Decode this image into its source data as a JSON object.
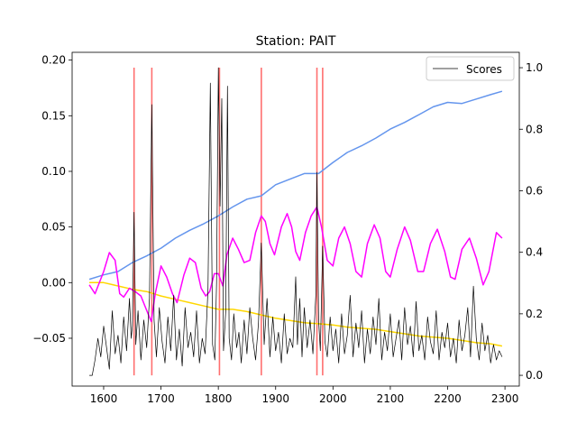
{
  "chart_data": {
    "type": "line",
    "title": "Station: PAIT",
    "xlabel": "",
    "ylabel": "",
    "xlim": [
      1545,
      2325
    ],
    "ylim_left": [
      -0.093,
      0.207
    ],
    "ylim_right": [
      -0.035,
      1.05
    ],
    "x_ticks": [
      1600,
      1700,
      1800,
      1900,
      2000,
      2100,
      2200,
      2300
    ],
    "y_ticks_left": [
      -0.05,
      0.0,
      0.05,
      0.1,
      0.15,
      0.2
    ],
    "y_ticks_right": [
      0.0,
      0.2,
      0.4,
      0.6,
      0.8,
      1.0
    ],
    "grid": false,
    "legend": {
      "placement": "top-right",
      "entries": [
        {
          "label": "Scores",
          "color": "#000000"
        }
      ]
    },
    "anomaly_lines": {
      "color": "#ff6f6f",
      "x": [
        1653,
        1684,
        1802,
        1875,
        1972,
        1982
      ],
      "y_range_right": [
        0.0,
        1.0
      ]
    },
    "series": [
      {
        "axis": "left",
        "color": "#6495ed",
        "points": [
          [
            1575,
            0.003
          ],
          [
            1600,
            0.007
          ],
          [
            1625,
            0.01
          ],
          [
            1650,
            0.018
          ],
          [
            1675,
            0.024
          ],
          [
            1700,
            0.031
          ],
          [
            1725,
            0.04
          ],
          [
            1750,
            0.047
          ],
          [
            1775,
            0.053
          ],
          [
            1800,
            0.06
          ],
          [
            1825,
            0.068
          ],
          [
            1850,
            0.075
          ],
          [
            1875,
            0.078
          ],
          [
            1900,
            0.088
          ],
          [
            1925,
            0.093
          ],
          [
            1950,
            0.098
          ],
          [
            1975,
            0.098
          ],
          [
            2000,
            0.108
          ],
          [
            2025,
            0.117
          ],
          [
            2050,
            0.123
          ],
          [
            2075,
            0.13
          ],
          [
            2100,
            0.138
          ],
          [
            2125,
            0.144
          ],
          [
            2150,
            0.151
          ],
          [
            2175,
            0.158
          ],
          [
            2200,
            0.162
          ],
          [
            2225,
            0.161
          ],
          [
            2250,
            0.165
          ],
          [
            2275,
            0.169
          ],
          [
            2295,
            0.172
          ]
        ]
      },
      {
        "axis": "left",
        "color": "#ffd700",
        "points": [
          [
            1575,
            0.0
          ],
          [
            1600,
            0.0
          ],
          [
            1625,
            -0.003
          ],
          [
            1650,
            -0.006
          ],
          [
            1675,
            -0.008
          ],
          [
            1700,
            -0.012
          ],
          [
            1725,
            -0.015
          ],
          [
            1750,
            -0.018
          ],
          [
            1775,
            -0.021
          ],
          [
            1800,
            -0.024
          ],
          [
            1825,
            -0.024
          ],
          [
            1850,
            -0.026
          ],
          [
            1875,
            -0.029
          ],
          [
            1900,
            -0.032
          ],
          [
            1925,
            -0.034
          ],
          [
            1950,
            -0.036
          ],
          [
            1975,
            -0.037
          ],
          [
            2000,
            -0.038
          ],
          [
            2025,
            -0.04
          ],
          [
            2050,
            -0.041
          ],
          [
            2075,
            -0.042
          ],
          [
            2100,
            -0.044
          ],
          [
            2125,
            -0.046
          ],
          [
            2150,
            -0.048
          ],
          [
            2175,
            -0.049
          ],
          [
            2200,
            -0.05
          ],
          [
            2225,
            -0.052
          ],
          [
            2250,
            -0.054
          ],
          [
            2275,
            -0.055
          ],
          [
            2295,
            -0.057
          ]
        ]
      },
      {
        "axis": "left",
        "color": "#ff00ff",
        "points": [
          [
            1575,
            -0.002
          ],
          [
            1585,
            -0.01
          ],
          [
            1600,
            0.01
          ],
          [
            1610,
            0.027
          ],
          [
            1620,
            0.02
          ],
          [
            1628,
            -0.01
          ],
          [
            1635,
            -0.013
          ],
          [
            1645,
            -0.005
          ],
          [
            1655,
            -0.008
          ],
          [
            1665,
            -0.012
          ],
          [
            1675,
            -0.025
          ],
          [
            1683,
            -0.035
          ],
          [
            1690,
            -0.01
          ],
          [
            1700,
            0.015
          ],
          [
            1710,
            0.005
          ],
          [
            1720,
            -0.01
          ],
          [
            1728,
            -0.018
          ],
          [
            1740,
            0.007
          ],
          [
            1750,
            0.022
          ],
          [
            1760,
            0.018
          ],
          [
            1770,
            -0.005
          ],
          [
            1778,
            -0.012
          ],
          [
            1785,
            -0.008
          ],
          [
            1793,
            0.008
          ],
          [
            1800,
            0.008
          ],
          [
            1808,
            -0.003
          ],
          [
            1815,
            0.025
          ],
          [
            1825,
            0.04
          ],
          [
            1835,
            0.03
          ],
          [
            1845,
            0.018
          ],
          [
            1855,
            0.02
          ],
          [
            1865,
            0.045
          ],
          [
            1875,
            0.06
          ],
          [
            1882,
            0.055
          ],
          [
            1890,
            0.035
          ],
          [
            1898,
            0.025
          ],
          [
            1910,
            0.05
          ],
          [
            1920,
            0.062
          ],
          [
            1928,
            0.05
          ],
          [
            1935,
            0.028
          ],
          [
            1942,
            0.02
          ],
          [
            1952,
            0.045
          ],
          [
            1962,
            0.06
          ],
          [
            1972,
            0.068
          ],
          [
            1980,
            0.05
          ],
          [
            1990,
            0.02
          ],
          [
            2000,
            0.015
          ],
          [
            2010,
            0.04
          ],
          [
            2020,
            0.05
          ],
          [
            2030,
            0.035
          ],
          [
            2040,
            0.01
          ],
          [
            2050,
            0.005
          ],
          [
            2060,
            0.035
          ],
          [
            2072,
            0.052
          ],
          [
            2082,
            0.04
          ],
          [
            2092,
            0.01
          ],
          [
            2100,
            0.005
          ],
          [
            2112,
            0.03
          ],
          [
            2125,
            0.05
          ],
          [
            2135,
            0.038
          ],
          [
            2148,
            0.01
          ],
          [
            2158,
            0.01
          ],
          [
            2170,
            0.035
          ],
          [
            2182,
            0.048
          ],
          [
            2195,
            0.028
          ],
          [
            2205,
            0.005
          ],
          [
            2213,
            0.003
          ],
          [
            2225,
            0.03
          ],
          [
            2238,
            0.04
          ],
          [
            2250,
            0.022
          ],
          [
            2262,
            -0.002
          ],
          [
            2272,
            0.01
          ],
          [
            2285,
            0.045
          ],
          [
            2295,
            0.04
          ]
        ]
      },
      {
        "name": "Scores",
        "axis": "right",
        "color": "#000000",
        "points": [
          [
            1575,
            0.0
          ],
          [
            1580,
            0.0
          ],
          [
            1585,
            0.05
          ],
          [
            1590,
            0.12
          ],
          [
            1595,
            0.06
          ],
          [
            1600,
            0.16
          ],
          [
            1605,
            0.09
          ],
          [
            1610,
            0.02
          ],
          [
            1615,
            0.21
          ],
          [
            1620,
            0.07
          ],
          [
            1625,
            0.13
          ],
          [
            1630,
            0.04
          ],
          [
            1635,
            0.19
          ],
          [
            1640,
            0.08
          ],
          [
            1645,
            0.25
          ],
          [
            1648,
            0.12
          ],
          [
            1650,
            0.16
          ],
          [
            1653,
            0.53
          ],
          [
            1656,
            0.1
          ],
          [
            1660,
            0.21
          ],
          [
            1665,
            0.05
          ],
          [
            1670,
            0.18
          ],
          [
            1675,
            0.09
          ],
          [
            1680,
            0.25
          ],
          [
            1684,
            0.88
          ],
          [
            1688,
            0.18
          ],
          [
            1692,
            0.06
          ],
          [
            1697,
            0.22
          ],
          [
            1702,
            0.11
          ],
          [
            1707,
            0.04
          ],
          [
            1712,
            0.19
          ],
          [
            1717,
            0.08
          ],
          [
            1722,
            0.26
          ],
          [
            1727,
            0.05
          ],
          [
            1732,
            0.15
          ],
          [
            1737,
            0.03
          ],
          [
            1742,
            0.22
          ],
          [
            1747,
            0.09
          ],
          [
            1752,
            0.14
          ],
          [
            1757,
            0.06
          ],
          [
            1762,
            0.21
          ],
          [
            1767,
            0.04
          ],
          [
            1772,
            0.12
          ],
          [
            1777,
            0.07
          ],
          [
            1782,
            0.28
          ],
          [
            1786,
            0.95
          ],
          [
            1790,
            0.1
          ],
          [
            1794,
            0.05
          ],
          [
            1797,
            0.3
          ],
          [
            1800,
            1.0
          ],
          [
            1803,
            0.55
          ],
          [
            1806,
            0.9
          ],
          [
            1809,
            0.08
          ],
          [
            1813,
            0.21
          ],
          [
            1816,
            0.94
          ],
          [
            1819,
            0.12
          ],
          [
            1823,
            0.05
          ],
          [
            1827,
            0.2
          ],
          [
            1832,
            0.09
          ],
          [
            1836,
            0.14
          ],
          [
            1840,
            0.04
          ],
          [
            1845,
            0.18
          ],
          [
            1850,
            0.07
          ],
          [
            1855,
            0.22
          ],
          [
            1860,
            0.12
          ],
          [
            1865,
            0.05
          ],
          [
            1870,
            0.17
          ],
          [
            1875,
            0.43
          ],
          [
            1880,
            0.1
          ],
          [
            1885,
            0.25
          ],
          [
            1890,
            0.06
          ],
          [
            1895,
            0.19
          ],
          [
            1900,
            0.08
          ],
          [
            1905,
            0.14
          ],
          [
            1910,
            0.04
          ],
          [
            1915,
            0.2
          ],
          [
            1920,
            0.07
          ],
          [
            1925,
            0.12
          ],
          [
            1930,
            0.09
          ],
          [
            1935,
            0.32
          ],
          [
            1938,
            0.1
          ],
          [
            1942,
            0.25
          ],
          [
            1946,
            0.06
          ],
          [
            1950,
            0.22
          ],
          [
            1955,
            0.09
          ],
          [
            1960,
            0.18
          ],
          [
            1965,
            0.07
          ],
          [
            1970,
            0.26
          ],
          [
            1972,
            0.66
          ],
          [
            1975,
            0.18
          ],
          [
            1978,
            0.08
          ],
          [
            1982,
            0.42
          ],
          [
            1986,
            0.11
          ],
          [
            1990,
            0.06
          ],
          [
            1995,
            0.19
          ],
          [
            2000,
            0.08
          ],
          [
            2005,
            0.15
          ],
          [
            2010,
            0.04
          ],
          [
            2015,
            0.2
          ],
          [
            2020,
            0.07
          ],
          [
            2025,
            0.13
          ],
          [
            2030,
            0.26
          ],
          [
            2035,
            0.06
          ],
          [
            2040,
            0.17
          ],
          [
            2045,
            0.09
          ],
          [
            2050,
            0.21
          ],
          [
            2055,
            0.04
          ],
          [
            2060,
            0.15
          ],
          [
            2065,
            0.07
          ],
          [
            2070,
            0.19
          ],
          [
            2075,
            0.1
          ],
          [
            2080,
            0.25
          ],
          [
            2085,
            0.05
          ],
          [
            2090,
            0.14
          ],
          [
            2095,
            0.08
          ],
          [
            2100,
            0.2
          ],
          [
            2105,
            0.06
          ],
          [
            2110,
            0.12
          ],
          [
            2115,
            0.18
          ],
          [
            2120,
            0.05
          ],
          [
            2125,
            0.22
          ],
          [
            2130,
            0.1
          ],
          [
            2135,
            0.16
          ],
          [
            2140,
            0.06
          ],
          [
            2145,
            0.24
          ],
          [
            2150,
            0.08
          ],
          [
            2155,
            0.13
          ],
          [
            2160,
            0.05
          ],
          [
            2165,
            0.19
          ],
          [
            2170,
            0.11
          ],
          [
            2175,
            0.07
          ],
          [
            2180,
            0.21
          ],
          [
            2185,
            0.05
          ],
          [
            2190,
            0.14
          ],
          [
            2195,
            0.09
          ],
          [
            2200,
            0.17
          ],
          [
            2205,
            0.06
          ],
          [
            2210,
            0.12
          ],
          [
            2215,
            0.04
          ],
          [
            2220,
            0.18
          ],
          [
            2225,
            0.08
          ],
          [
            2230,
            0.13
          ],
          [
            2235,
            0.22
          ],
          [
            2240,
            0.06
          ],
          [
            2245,
            0.29
          ],
          [
            2250,
            0.12
          ],
          [
            2255,
            0.05
          ],
          [
            2260,
            0.17
          ],
          [
            2265,
            0.08
          ],
          [
            2270,
            0.13
          ],
          [
            2275,
            0.04
          ],
          [
            2280,
            0.1
          ],
          [
            2285,
            0.05
          ],
          [
            2290,
            0.08
          ],
          [
            2295,
            0.06
          ]
        ]
      }
    ]
  }
}
